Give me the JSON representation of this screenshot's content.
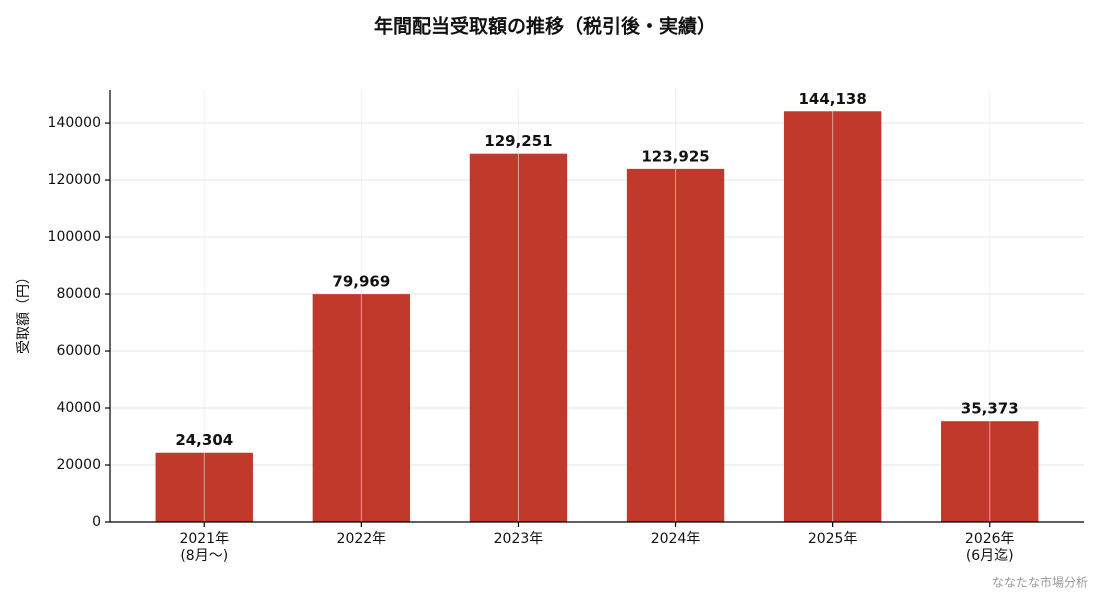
{
  "chart_data": {
    "type": "bar",
    "title": "年間配当受取額の推移（税引後・実績）",
    "y_label": "受取額（円）",
    "watermark": "ななたな市場分析",
    "categories": [
      [
        "2021年",
        "(8月〜)"
      ],
      [
        "2022年"
      ],
      [
        "2023年"
      ],
      [
        "2024年"
      ],
      [
        "2025年"
      ],
      [
        "2026年",
        "(6月迄)"
      ]
    ],
    "values": [
      24304,
      79969,
      129251,
      123925,
      144138,
      35373
    ],
    "value_labels": [
      "24,304",
      "79,969",
      "129,251",
      "123,925",
      "144,138",
      "35,373"
    ],
    "color": "#c0392b",
    "ylim": [
      0,
      151600
    ],
    "yticks": [
      0,
      20000,
      40000,
      60000,
      80000,
      100000,
      120000,
      140000
    ],
    "grid": true
  }
}
